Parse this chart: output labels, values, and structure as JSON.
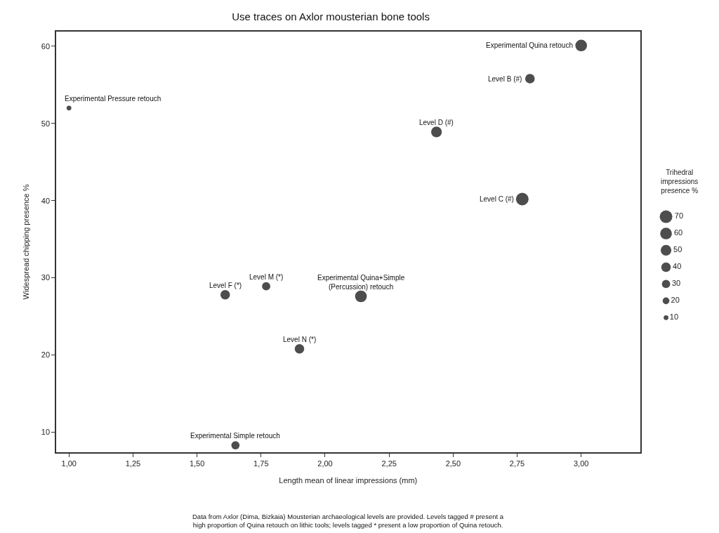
{
  "chart_data": {
    "type": "bubble",
    "title": "Use traces on Axlor mousterian bone tools",
    "xlabel": "Length mean of linear impressions (mm)",
    "ylabel": "Widespread chipping presence %",
    "legend_title": "Trihedral\nimpressions\npresence %",
    "x": [
      3.0,
      2.8,
      1.0,
      2.435,
      2.77,
      1.61,
      1.77,
      2.14,
      1.9,
      1.65
    ],
    "series": [
      {
        "color": "#4d4d4d",
        "values": [
          60.1,
          55.8,
          52.0,
          48.9,
          40.2,
          27.8,
          28.9,
          27.6,
          20.8,
          8.3
        ],
        "sizes": [
          60,
          40,
          10,
          50,
          70,
          40,
          30,
          60,
          40,
          30
        ]
      }
    ],
    "size_legend": [
      {
        "value": 70,
        "label": "70"
      },
      {
        "value": 60,
        "label": "60"
      },
      {
        "value": 50,
        "label": "50"
      },
      {
        "value": 40,
        "label": "40"
      },
      {
        "value": 30,
        "label": "30"
      },
      {
        "value": 20,
        "label": "20"
      },
      {
        "value": 10,
        "label": "10"
      }
    ],
    "marker": "circle",
    "grid": false,
    "xlim": [
      0.95,
      3.23
    ],
    "ylim": [
      7.4,
      61.9
    ],
    "xticks": [
      {
        "value": 1.0,
        "label": "1,00"
      },
      {
        "value": 1.25,
        "label": "1,25"
      },
      {
        "value": 1.5,
        "label": "1,50"
      },
      {
        "value": 1.75,
        "label": "1,75"
      },
      {
        "value": 2.0,
        "label": "2,00"
      },
      {
        "value": 2.25,
        "label": "2,25"
      },
      {
        "value": 2.5,
        "label": "2,50"
      },
      {
        "value": 2.75,
        "label": "2,75"
      },
      {
        "value": 3.0,
        "label": "3,00"
      }
    ],
    "yticks": [
      10,
      20,
      30,
      40,
      50,
      60
    ],
    "annotations": [
      {
        "text": "Experimental Quina retouch",
        "x": 3.0,
        "y": 60.1
      },
      {
        "text": "Level B (#)",
        "x": 2.8,
        "y": 55.8
      },
      {
        "text": "Experimental Pressure retouch",
        "x": 1.0,
        "y": 52.0
      },
      {
        "text": "Level D (#)",
        "x": 2.435,
        "y": 48.9
      },
      {
        "text": "Level C (#)",
        "x": 2.77,
        "y": 40.2
      },
      {
        "text": "Level F (*)",
        "x": 1.61,
        "y": 27.8
      },
      {
        "text": "Level M (*)",
        "x": 1.77,
        "y": 28.9
      },
      {
        "text": "Experimental Quina+Simple\n(Percussion) retouch",
        "x": 2.14,
        "y": 27.6
      },
      {
        "text": "Level N (*)",
        "x": 1.9,
        "y": 20.8
      },
      {
        "text": "Experimental Simple retouch",
        "x": 1.65,
        "y": 8.3
      },
      "Data from Axlor (Dima, Bizkaia) Mousterian archaeological levels are provided. Levels tagged # present a\nhigh proportion of Quina retouch on lithic tools; levels tagged * present a low proportion of Quina retouch."
    ]
  }
}
